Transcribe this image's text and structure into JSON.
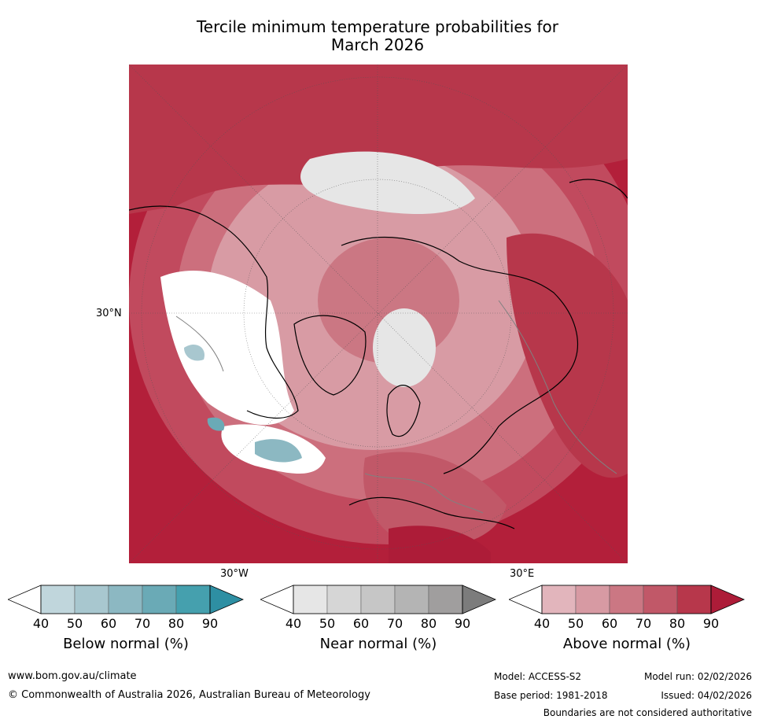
{
  "title": {
    "line1": "Tercile minimum temperature probabilities for",
    "line2": "March 2026"
  },
  "map": {
    "lat_label": "30°N",
    "lon_label_left": "30°W",
    "lon_label_right": "30°E"
  },
  "colorbars": [
    {
      "id": "below",
      "label": "Below normal (%)",
      "ticks": [
        "40",
        "50",
        "60",
        "70",
        "80",
        "90"
      ],
      "colors": [
        "#ffffff",
        "#c0d6dc",
        "#a8c7cf",
        "#8cb8c2",
        "#6aaab6",
        "#45a0ae",
        "#2e8fa3"
      ]
    },
    {
      "id": "near",
      "label": "Near normal (%)",
      "ticks": [
        "40",
        "50",
        "60",
        "70",
        "80",
        "90"
      ],
      "colors": [
        "#ffffff",
        "#e6e6e6",
        "#d6d6d6",
        "#c6c6c6",
        "#b4b4b4",
        "#a09e9e",
        "#7c7c7c"
      ]
    },
    {
      "id": "above",
      "label": "Above normal (%)",
      "ticks": [
        "40",
        "50",
        "60",
        "70",
        "80",
        "90"
      ],
      "colors": [
        "#ffffff",
        "#e2b5bc",
        "#d79aa3",
        "#cb7783",
        "#c15868",
        "#b7374b",
        "#ad1c38"
      ]
    }
  ],
  "footer": {
    "website": "www.bom.gov.au/climate",
    "copyright": "© Commonwealth of Australia 2026, Australian Bureau of Meteorology",
    "model": "Model: ACCESS-S2",
    "model_run": "Model run: 02/02/2026",
    "base_period": "Base period: 1981-2018",
    "issued": "Issued: 04/02/2026",
    "disclaimer": "Boundaries are not considered authoritative"
  }
}
